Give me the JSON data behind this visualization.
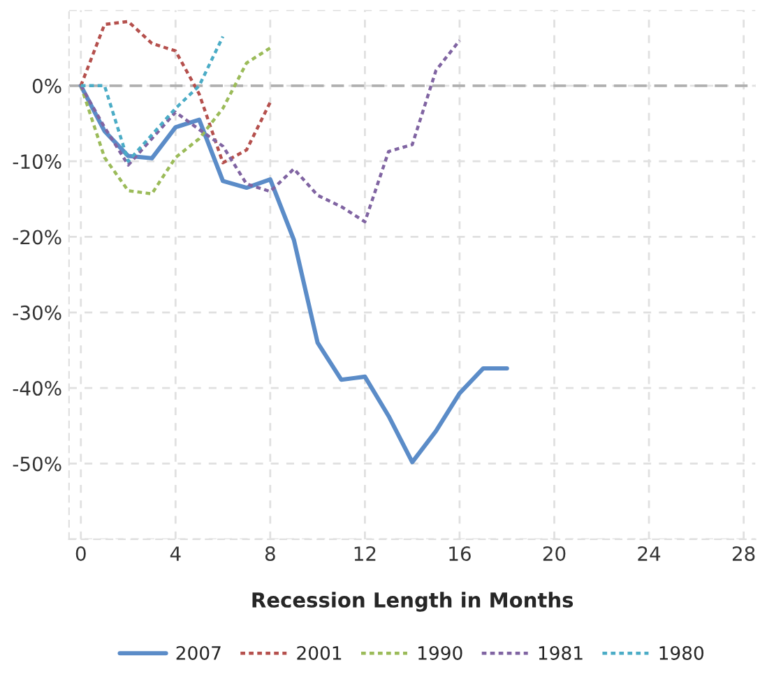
{
  "chart_data": {
    "type": "line",
    "xlabel": "Recession Length in Months",
    "xlim": [
      -0.5,
      28.5
    ],
    "xticks": [
      0,
      4,
      8,
      12,
      16,
      20,
      24,
      28
    ],
    "ylim": [
      -60,
      10
    ],
    "yticks": [
      {
        "value": -60,
        "label": null
      },
      {
        "value": -50,
        "label": "-50%"
      },
      {
        "value": -40,
        "label": "-40%"
      },
      {
        "value": -30,
        "label": "-30%"
      },
      {
        "value": -20,
        "label": "-20%"
      },
      {
        "value": -10,
        "label": "-10%"
      },
      {
        "value": 0,
        "label": "0%"
      },
      {
        "value": 10,
        "label": null
      }
    ],
    "grid": true,
    "legend": "bottom",
    "ref_lines": [
      {
        "axis": "y",
        "value": 0,
        "color": "#b0b0b0",
        "line_style": "dashed"
      }
    ],
    "series": [
      {
        "name": "2007",
        "color": "#5b8cc8",
        "line_style": "solid",
        "x": [
          0,
          1,
          2,
          3,
          4,
          5,
          6,
          7,
          8,
          9,
          10,
          11,
          12,
          13,
          14,
          15,
          16,
          17,
          18
        ],
        "values": [
          0,
          -6,
          -9.3,
          -9.6,
          -5.5,
          -4.5,
          -12.6,
          -13.5,
          -12.4,
          -20.4,
          -34,
          -38.9,
          -38.5,
          -43.7,
          -49.8,
          -45.7,
          -40.7,
          -37.4,
          -37.4
        ]
      },
      {
        "name": "2001",
        "color": "#b5504d",
        "line_style": "dotted",
        "x": [
          0,
          1,
          2,
          3,
          4,
          5,
          6,
          7,
          8
        ],
        "values": [
          0,
          8.1,
          8.5,
          5.6,
          4.6,
          -1.1,
          -10.2,
          -8.5,
          -2.2
        ]
      },
      {
        "name": "1990",
        "color": "#9bbb59",
        "line_style": "dotted",
        "x": [
          0,
          1,
          2,
          3,
          4,
          5,
          6,
          7,
          8
        ],
        "values": [
          0,
          -9.5,
          -13.9,
          -14.3,
          -9.5,
          -7,
          -3,
          3,
          5
        ]
      },
      {
        "name": "1981",
        "color": "#8064a2",
        "line_style": "dotted",
        "x": [
          0,
          1,
          2,
          3,
          4,
          5,
          6,
          7,
          8,
          9,
          10,
          11,
          12,
          13,
          14,
          15,
          16
        ],
        "values": [
          0,
          -5.5,
          -10.5,
          -7,
          -3.5,
          -5.8,
          -8,
          -13,
          -14,
          -11,
          -14.5,
          -16,
          -18,
          -8.7,
          -7.8,
          2,
          6
        ]
      },
      {
        "name": "1980",
        "color": "#4bacc6",
        "line_style": "dotted",
        "x": [
          0,
          1,
          2,
          3,
          4,
          5,
          6
        ],
        "values": [
          0,
          0,
          -10,
          -6.5,
          -3,
          0,
          6.5
        ]
      }
    ]
  }
}
